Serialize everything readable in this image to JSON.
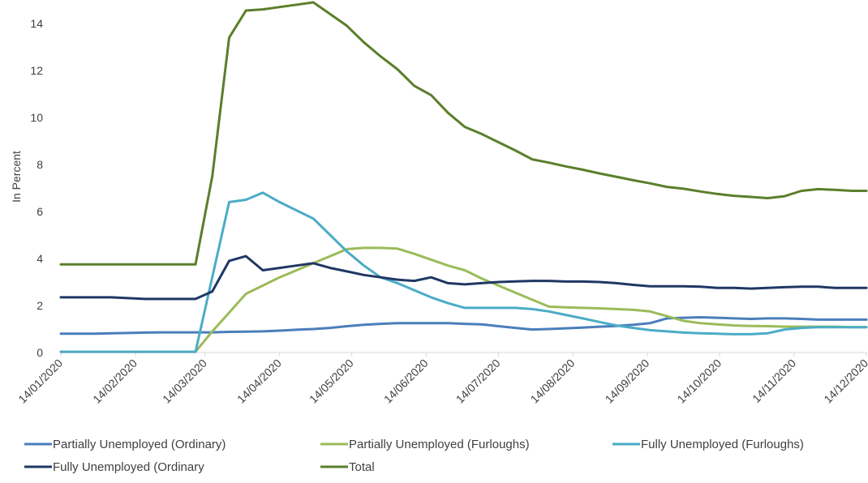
{
  "chart_data": {
    "type": "line",
    "title": "",
    "xlabel": "",
    "ylabel": "In Percent",
    "ylim": [
      0,
      14
    ],
    "y_ticks": [
      "0",
      "2",
      "4",
      "6",
      "8",
      "10",
      "12",
      "14"
    ],
    "x_range": [
      "2020-01-14",
      "2020-12-14"
    ],
    "x_ticks": [
      "14/01/2020",
      "14/02/2020",
      "14/03/2020",
      "14/04/2020",
      "14/05/2020",
      "14/06/2020",
      "14/07/2020",
      "14/08/2020",
      "14/09/2020",
      "14/10/2020",
      "14/11/2020",
      "14/12/2020"
    ],
    "grid": false,
    "legend_position": "bottom",
    "series": [
      {
        "name": "Partially Unemployed (Ordinary)",
        "color": "#4a7ebb",
        "points": [
          [
            "2020-01-14",
            0.8
          ],
          [
            "2020-01-21",
            0.8
          ],
          [
            "2020-01-28",
            0.8
          ],
          [
            "2020-02-04",
            0.82
          ],
          [
            "2020-02-11",
            0.83
          ],
          [
            "2020-02-18",
            0.85
          ],
          [
            "2020-02-25",
            0.86
          ],
          [
            "2020-03-03",
            0.86
          ],
          [
            "2020-03-10",
            0.86
          ],
          [
            "2020-03-17",
            0.86
          ],
          [
            "2020-03-24",
            0.88
          ],
          [
            "2020-03-31",
            0.89
          ],
          [
            "2020-04-07",
            0.9
          ],
          [
            "2020-04-14",
            0.93
          ],
          [
            "2020-04-21",
            0.97
          ],
          [
            "2020-04-28",
            1.0
          ],
          [
            "2020-05-05",
            1.05
          ],
          [
            "2020-05-12",
            1.12
          ],
          [
            "2020-05-19",
            1.18
          ],
          [
            "2020-05-26",
            1.22
          ],
          [
            "2020-06-02",
            1.25
          ],
          [
            "2020-06-09",
            1.25
          ],
          [
            "2020-06-16",
            1.25
          ],
          [
            "2020-06-23",
            1.25
          ],
          [
            "2020-06-30",
            1.22
          ],
          [
            "2020-07-07",
            1.2
          ],
          [
            "2020-07-14",
            1.12
          ],
          [
            "2020-07-21",
            1.05
          ],
          [
            "2020-07-28",
            0.98
          ],
          [
            "2020-08-04",
            1.0
          ],
          [
            "2020-08-11",
            1.03
          ],
          [
            "2020-08-18",
            1.06
          ],
          [
            "2020-08-25",
            1.1
          ],
          [
            "2020-09-01",
            1.13
          ],
          [
            "2020-09-08",
            1.18
          ],
          [
            "2020-09-15",
            1.25
          ],
          [
            "2020-09-22",
            1.45
          ],
          [
            "2020-09-29",
            1.48
          ],
          [
            "2020-10-06",
            1.5
          ],
          [
            "2020-10-13",
            1.48
          ],
          [
            "2020-10-20",
            1.45
          ],
          [
            "2020-10-27",
            1.43
          ],
          [
            "2020-11-03",
            1.45
          ],
          [
            "2020-11-10",
            1.45
          ],
          [
            "2020-11-17",
            1.43
          ],
          [
            "2020-11-24",
            1.4
          ],
          [
            "2020-12-01",
            1.4
          ],
          [
            "2020-12-08",
            1.4
          ],
          [
            "2020-12-14",
            1.4
          ]
        ]
      },
      {
        "name": "Partially Unemployed (Furloughs)",
        "color": "#9bbb59",
        "points": [
          [
            "2020-01-14",
            0.03
          ],
          [
            "2020-03-10",
            0.03
          ],
          [
            "2020-03-17",
            0.9
          ],
          [
            "2020-03-24",
            1.7
          ],
          [
            "2020-03-31",
            2.5
          ],
          [
            "2020-04-07",
            2.85
          ],
          [
            "2020-04-14",
            3.2
          ],
          [
            "2020-04-21",
            3.5
          ],
          [
            "2020-04-28",
            3.8
          ],
          [
            "2020-05-05",
            4.1
          ],
          [
            "2020-05-12",
            4.4
          ],
          [
            "2020-05-19",
            4.45
          ],
          [
            "2020-05-26",
            4.45
          ],
          [
            "2020-06-02",
            4.42
          ],
          [
            "2020-06-09",
            4.2
          ],
          [
            "2020-06-16",
            3.95
          ],
          [
            "2020-06-23",
            3.7
          ],
          [
            "2020-06-30",
            3.5
          ],
          [
            "2020-07-07",
            3.15
          ],
          [
            "2020-07-14",
            2.85
          ],
          [
            "2020-07-21",
            2.55
          ],
          [
            "2020-07-28",
            2.25
          ],
          [
            "2020-08-04",
            1.95
          ],
          [
            "2020-08-11",
            1.92
          ],
          [
            "2020-08-18",
            1.9
          ],
          [
            "2020-08-25",
            1.88
          ],
          [
            "2020-09-01",
            1.85
          ],
          [
            "2020-09-08",
            1.82
          ],
          [
            "2020-09-15",
            1.75
          ],
          [
            "2020-09-22",
            1.55
          ],
          [
            "2020-09-29",
            1.35
          ],
          [
            "2020-10-06",
            1.25
          ],
          [
            "2020-10-13",
            1.2
          ],
          [
            "2020-10-20",
            1.15
          ],
          [
            "2020-10-27",
            1.13
          ],
          [
            "2020-11-03",
            1.12
          ],
          [
            "2020-11-10",
            1.1
          ],
          [
            "2020-11-17",
            1.1
          ],
          [
            "2020-11-24",
            1.1
          ],
          [
            "2020-12-01",
            1.1
          ],
          [
            "2020-12-08",
            1.08
          ],
          [
            "2020-12-14",
            1.08
          ]
        ]
      },
      {
        "name": "Fully Unemployed (Furloughs)",
        "color": "#4bacc6",
        "points": [
          [
            "2020-01-14",
            0.03
          ],
          [
            "2020-03-10",
            0.03
          ],
          [
            "2020-03-24",
            6.4
          ],
          [
            "2020-03-31",
            6.5
          ],
          [
            "2020-04-07",
            6.8
          ],
          [
            "2020-04-14",
            6.4
          ],
          [
            "2020-04-21",
            6.05
          ],
          [
            "2020-04-28",
            5.7
          ],
          [
            "2020-05-05",
            5.0
          ],
          [
            "2020-05-12",
            4.3
          ],
          [
            "2020-05-19",
            3.7
          ],
          [
            "2020-05-26",
            3.2
          ],
          [
            "2020-06-02",
            2.95
          ],
          [
            "2020-06-09",
            2.65
          ],
          [
            "2020-06-16",
            2.35
          ],
          [
            "2020-06-23",
            2.1
          ],
          [
            "2020-06-30",
            1.9
          ],
          [
            "2020-07-07",
            1.9
          ],
          [
            "2020-07-14",
            1.9
          ],
          [
            "2020-07-21",
            1.9
          ],
          [
            "2020-07-28",
            1.85
          ],
          [
            "2020-08-04",
            1.75
          ],
          [
            "2020-08-11",
            1.6
          ],
          [
            "2020-08-18",
            1.45
          ],
          [
            "2020-08-25",
            1.3
          ],
          [
            "2020-09-01",
            1.15
          ],
          [
            "2020-09-08",
            1.05
          ],
          [
            "2020-09-15",
            0.95
          ],
          [
            "2020-09-22",
            0.9
          ],
          [
            "2020-09-29",
            0.85
          ],
          [
            "2020-10-06",
            0.82
          ],
          [
            "2020-10-13",
            0.8
          ],
          [
            "2020-10-20",
            0.78
          ],
          [
            "2020-10-27",
            0.78
          ],
          [
            "2020-11-03",
            0.82
          ],
          [
            "2020-11-10",
            0.98
          ],
          [
            "2020-11-17",
            1.05
          ],
          [
            "2020-11-24",
            1.08
          ],
          [
            "2020-12-01",
            1.08
          ],
          [
            "2020-12-08",
            1.08
          ],
          [
            "2020-12-14",
            1.08
          ]
        ]
      },
      {
        "name": "Fully Unemployed (Ordinary",
        "color": "#1f3864",
        "points": [
          [
            "2020-01-14",
            2.35
          ],
          [
            "2020-02-04",
            2.35
          ],
          [
            "2020-02-18",
            2.28
          ],
          [
            "2020-03-10",
            2.28
          ],
          [
            "2020-03-17",
            2.6
          ],
          [
            "2020-03-24",
            3.9
          ],
          [
            "2020-03-31",
            4.1
          ],
          [
            "2020-04-07",
            3.5
          ],
          [
            "2020-04-14",
            3.6
          ],
          [
            "2020-04-21",
            3.7
          ],
          [
            "2020-04-28",
            3.8
          ],
          [
            "2020-05-05",
            3.6
          ],
          [
            "2020-05-12",
            3.45
          ],
          [
            "2020-05-19",
            3.3
          ],
          [
            "2020-05-26",
            3.2
          ],
          [
            "2020-06-02",
            3.1
          ],
          [
            "2020-06-09",
            3.05
          ],
          [
            "2020-06-16",
            3.2
          ],
          [
            "2020-06-23",
            2.95
          ],
          [
            "2020-06-30",
            2.9
          ],
          [
            "2020-07-07",
            2.95
          ],
          [
            "2020-07-14",
            3.0
          ],
          [
            "2020-07-28",
            3.05
          ],
          [
            "2020-08-04",
            3.05
          ],
          [
            "2020-08-11",
            3.02
          ],
          [
            "2020-08-18",
            3.02
          ],
          [
            "2020-08-25",
            3.0
          ],
          [
            "2020-09-01",
            2.95
          ],
          [
            "2020-09-08",
            2.88
          ],
          [
            "2020-09-15",
            2.82
          ],
          [
            "2020-09-22",
            2.82
          ],
          [
            "2020-09-29",
            2.82
          ],
          [
            "2020-10-06",
            2.8
          ],
          [
            "2020-10-13",
            2.75
          ],
          [
            "2020-10-20",
            2.75
          ],
          [
            "2020-10-27",
            2.72
          ],
          [
            "2020-11-03",
            2.75
          ],
          [
            "2020-11-10",
            2.78
          ],
          [
            "2020-11-17",
            2.8
          ],
          [
            "2020-11-24",
            2.8
          ],
          [
            "2020-12-01",
            2.75
          ],
          [
            "2020-12-14",
            2.75
          ]
        ]
      },
      {
        "name": "Total",
        "color": "#5a7f2b",
        "points": [
          [
            "2020-01-14",
            3.75
          ],
          [
            "2020-03-10",
            3.75
          ],
          [
            "2020-03-17",
            7.5
          ],
          [
            "2020-03-24",
            13.4
          ],
          [
            "2020-03-31",
            14.55
          ],
          [
            "2020-04-07",
            14.6
          ],
          [
            "2020-04-14",
            14.7
          ],
          [
            "2020-04-21",
            14.8
          ],
          [
            "2020-04-28",
            14.9
          ],
          [
            "2020-05-05",
            14.4
          ],
          [
            "2020-05-12",
            13.9
          ],
          [
            "2020-05-19",
            13.2
          ],
          [
            "2020-05-26",
            12.6
          ],
          [
            "2020-06-02",
            12.05
          ],
          [
            "2020-06-09",
            11.35
          ],
          [
            "2020-06-16",
            10.95
          ],
          [
            "2020-06-23",
            10.2
          ],
          [
            "2020-06-30",
            9.6
          ],
          [
            "2020-07-07",
            9.3
          ],
          [
            "2020-07-14",
            8.95
          ],
          [
            "2020-07-21",
            8.6
          ],
          [
            "2020-07-28",
            8.22
          ],
          [
            "2020-08-04",
            8.08
          ],
          [
            "2020-08-11",
            7.92
          ],
          [
            "2020-08-18",
            7.78
          ],
          [
            "2020-08-25",
            7.62
          ],
          [
            "2020-09-01",
            7.48
          ],
          [
            "2020-09-08",
            7.33
          ],
          [
            "2020-09-15",
            7.2
          ],
          [
            "2020-09-22",
            7.05
          ],
          [
            "2020-09-29",
            6.97
          ],
          [
            "2020-10-06",
            6.85
          ],
          [
            "2020-10-13",
            6.75
          ],
          [
            "2020-10-20",
            6.67
          ],
          [
            "2020-10-27",
            6.62
          ],
          [
            "2020-11-03",
            6.57
          ],
          [
            "2020-11-10",
            6.65
          ],
          [
            "2020-11-17",
            6.88
          ],
          [
            "2020-11-24",
            6.95
          ],
          [
            "2020-12-01",
            6.92
          ],
          [
            "2020-12-08",
            6.88
          ],
          [
            "2020-12-14",
            6.88
          ]
        ]
      }
    ]
  }
}
